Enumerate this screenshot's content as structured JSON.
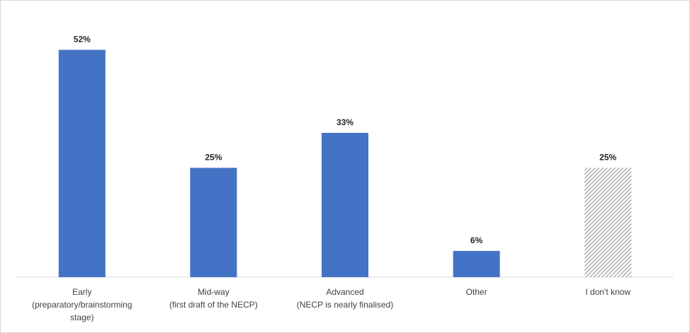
{
  "chart_data": {
    "type": "bar",
    "categories": [
      [
        "Early",
        "(preparatory/brainstorming",
        "stage)"
      ],
      [
        "Mid-way",
        "(first draft of the NECP)"
      ],
      [
        "Advanced",
        "(NECP is nearly finalised)"
      ],
      [
        "Other"
      ],
      [
        "I don't know"
      ]
    ],
    "values": [
      52,
      25,
      33,
      6,
      25
    ],
    "data_labels": [
      "52%",
      "25%",
      "33%",
      "6%",
      "25%"
    ],
    "ylim": [
      0,
      60
    ],
    "grid": false,
    "legend": "none",
    "title": "",
    "xlabel": "",
    "ylabel": "",
    "bar_colors": [
      "#4472c4",
      "#4472c4",
      "#4472c4",
      "#4472c4",
      "hatched-gray"
    ],
    "accent_color": "#4472c4",
    "hatch_color": "#8c8c8c"
  }
}
